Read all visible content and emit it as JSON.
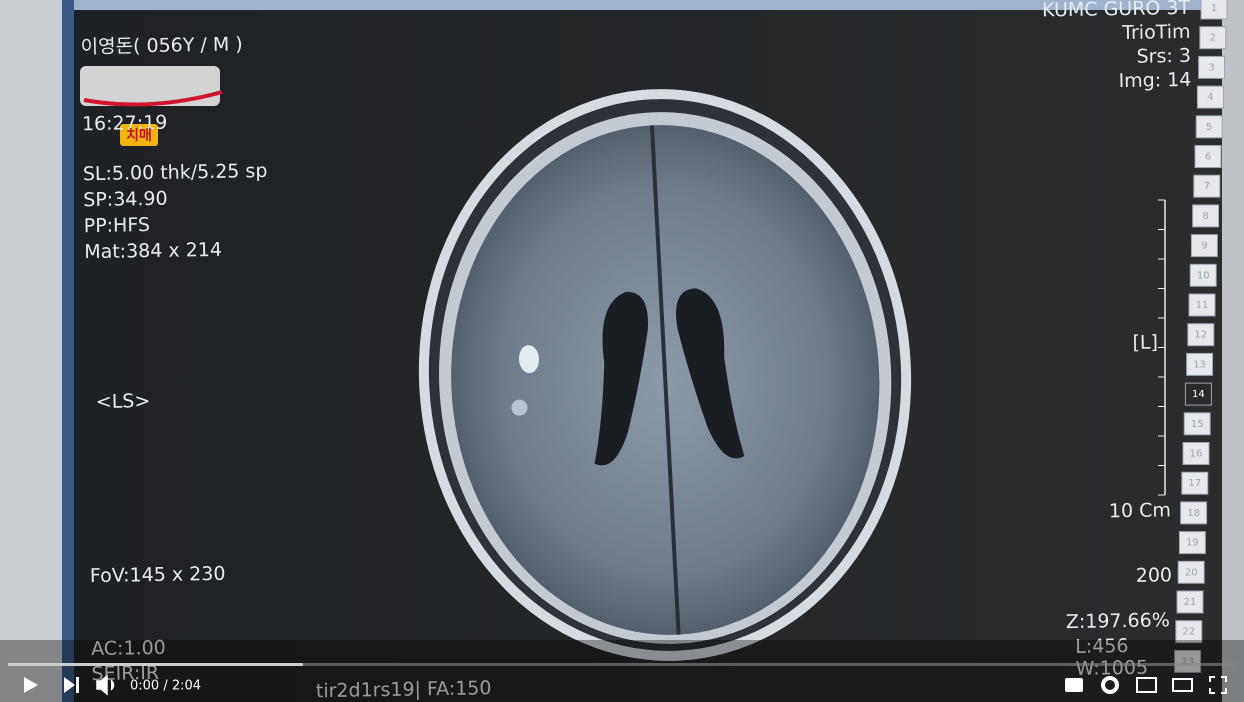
{
  "monitor": {
    "patient": "이영돈( 056Y / M )",
    "time": "16:27:19",
    "badge": "치매",
    "left_info": [
      "SL:5.00 thk/5.25 sp",
      "SP:34.90",
      "PP:HFS",
      "Mat:384 x 214"
    ],
    "orientation": "<LS>",
    "fov": "FoV:145 x 230",
    "bottom_left": [
      "AC:1.00",
      "SEIR:IR"
    ],
    "sequence": "tir2d1rs19| FA:150",
    "right_info": [
      "KUMC GURO 3T",
      "TrioTim",
      "Srs: 3",
      "Img: 14"
    ],
    "side_label": "[L]",
    "scale": "10 Cm",
    "scale_value": "200",
    "zoom": "Z:197.66%",
    "level": "L:456",
    "window": "W:1005",
    "slices": [
      "1",
      "2",
      "3",
      "4",
      "5",
      "6",
      "7",
      "8",
      "9",
      "10",
      "11",
      "12",
      "13",
      "14",
      "15",
      "16",
      "17",
      "18",
      "19",
      "20",
      "21",
      "22",
      "23"
    ]
  },
  "player": {
    "time": "0:00 / 2:04"
  }
}
